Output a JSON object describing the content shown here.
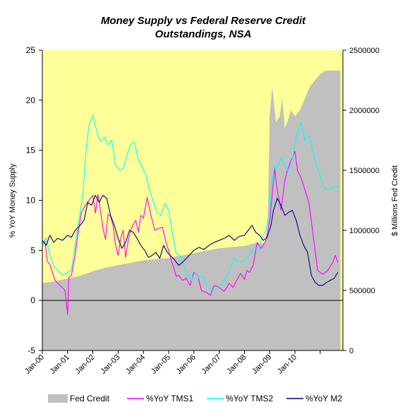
{
  "colors": {
    "plot_bg": "#FFFF99",
    "fed_credit": "#C0C0C0",
    "tms1": "#FF00FF",
    "tms2": "#00FFFF",
    "m2": "#000080",
    "axis": "#000000"
  },
  "chart_data": {
    "type": "line",
    "title_lines": [
      "Money Supply vs Federal Reserve Credit",
      "Outstandings, NSA"
    ],
    "ylabel_left": "% YoY Money Supply",
    "ylabel_right": "$ Millions Fed Credit",
    "ylim_left": [
      -5,
      25
    ],
    "ylim_right": [
      0,
      2500000
    ],
    "yticks_left": [
      "25",
      "20",
      "15",
      "10",
      "5",
      "0",
      "-5"
    ],
    "yticks_right": [
      "2500000",
      "2000000",
      "1500000",
      "1000000",
      "500000",
      "0"
    ],
    "xticks": [
      "Jan-00",
      "Jan-01",
      "Jan-02",
      "Jan-03",
      "Jan-04",
      "Jan-05",
      "Jan-06",
      "Jan-07",
      "Jan-08",
      "Jan-09",
      "Jan-10"
    ],
    "xlim": [
      0,
      11.9
    ],
    "legend_position": "bottom",
    "series": [
      {
        "name": "Fed Credit",
        "kind": "area",
        "axis": "right",
        "x": [
          0,
          0.5,
          1,
          1.5,
          2,
          2.5,
          3,
          3.5,
          4,
          4.5,
          5,
          5.5,
          6,
          6.5,
          7,
          7.5,
          8,
          8.5,
          8.7,
          8.83,
          8.92,
          9.0,
          9.1,
          9.25,
          9.4,
          9.5,
          9.6,
          9.7,
          9.85,
          10.0,
          10.2,
          10.4,
          10.6,
          10.8,
          11.0,
          11.2,
          11.4,
          11.6,
          11.8
        ],
        "values": [
          560000,
          575000,
          600000,
          620000,
          660000,
          690000,
          710000,
          730000,
          750000,
          760000,
          770000,
          790000,
          810000,
          830000,
          850000,
          860000,
          870000,
          900000,
          890000,
          900000,
          1000000,
          1950000,
          2200000,
          1900000,
          1950000,
          2100000,
          1850000,
          1900000,
          2000000,
          1950000,
          2000000,
          2100000,
          2200000,
          2250000,
          2300000,
          2330000,
          2330000,
          2330000,
          2330000
        ]
      },
      {
        "name": "%YoY TMS1",
        "kind": "line",
        "axis": "left",
        "x": [
          0,
          0.1,
          0.2,
          0.3,
          0.5,
          0.7,
          0.9,
          1.0,
          1.05,
          1.15,
          1.3,
          1.4,
          1.55,
          1.7,
          1.85,
          2.0,
          2.1,
          2.2,
          2.3,
          2.4,
          2.5,
          2.6,
          2.7,
          2.8,
          2.9,
          3.0,
          3.1,
          3.2,
          3.3,
          3.4,
          3.5,
          3.6,
          3.7,
          3.8,
          3.9,
          4.0,
          4.15,
          4.3,
          4.45,
          4.6,
          4.75,
          4.9,
          5.0,
          5.1,
          5.2,
          5.3,
          5.4,
          5.55,
          5.7,
          5.85,
          6.0,
          6.15,
          6.3,
          6.5,
          6.65,
          6.8,
          7.0,
          7.2,
          7.4,
          7.55,
          7.7,
          7.85,
          8.0,
          8.1,
          8.2,
          8.35,
          8.5,
          8.65,
          8.75,
          8.85,
          9.0,
          9.1,
          9.2,
          9.3,
          9.45,
          9.6,
          9.7,
          9.85,
          10.0,
          10.1,
          10.25,
          10.4,
          10.55,
          10.7,
          10.9,
          11.1,
          11.3,
          11.5,
          11.6,
          11.7
        ],
        "values": [
          5.5,
          6.0,
          3.9,
          3.6,
          2.0,
          1.5,
          1.0,
          -1.4,
          2.3,
          2.5,
          4.5,
          6.5,
          8.8,
          9.5,
          10.0,
          10.5,
          8.7,
          10.6,
          9.0,
          7.2,
          6.1,
          8.6,
          8.4,
          7.5,
          5.5,
          4.5,
          6.2,
          7.0,
          4.3,
          6.0,
          7.0,
          7.6,
          8.0,
          6.8,
          8.5,
          8.2,
          10.3,
          8.5,
          7.0,
          7.2,
          7.3,
          5.8,
          5.0,
          4.0,
          3.3,
          2.4,
          2.5,
          2.0,
          2.2,
          1.5,
          2.8,
          2.5,
          1.0,
          0.8,
          0.5,
          1.5,
          1.3,
          0.9,
          1.7,
          1.3,
          2.0,
          2.7,
          2.1,
          3.0,
          2.8,
          3.5,
          5.8,
          5.2,
          5.5,
          6.0,
          8.0,
          10.5,
          13.2,
          11.0,
          9.0,
          12.0,
          13.0,
          14.0,
          14.9,
          13.0,
          12.2,
          11.0,
          9.8,
          7.0,
          3.0,
          2.6,
          3.0,
          3.8,
          4.5,
          3.8
        ]
      },
      {
        "name": "%YoY TMS2",
        "kind": "line",
        "axis": "left",
        "x": [
          0,
          0.15,
          0.3,
          0.45,
          0.6,
          0.8,
          1.0,
          1.15,
          1.3,
          1.45,
          1.6,
          1.75,
          1.85,
          2.0,
          2.1,
          2.2,
          2.3,
          2.45,
          2.6,
          2.75,
          2.9,
          3.05,
          3.2,
          3.35,
          3.5,
          3.65,
          3.8,
          3.95,
          4.1,
          4.25,
          4.4,
          4.55,
          4.7,
          4.85,
          5.0,
          5.1,
          5.2,
          5.3,
          5.45,
          5.6,
          5.75,
          5.9,
          6.05,
          6.2,
          6.35,
          6.5,
          6.65,
          6.8,
          7.0,
          7.2,
          7.4,
          7.6,
          7.8,
          8.0,
          8.2,
          8.4,
          8.55,
          8.7,
          8.85,
          9.0,
          9.1,
          9.2,
          9.3,
          9.45,
          9.6,
          9.75,
          9.9,
          10.0,
          10.1,
          10.25,
          10.4,
          10.55,
          10.7,
          10.85,
          11.0,
          11.15,
          11.3,
          11.45,
          11.6,
          11.75
        ],
        "values": [
          5.5,
          6.3,
          4.5,
          3.5,
          3.0,
          2.5,
          2.8,
          3.0,
          5.5,
          8.0,
          10.5,
          15.5,
          17.5,
          18.5,
          17.5,
          16.5,
          15.9,
          16.3,
          15.5,
          16.0,
          13.5,
          13.0,
          13.2,
          14.5,
          15.6,
          15.8,
          14.0,
          13.3,
          12.5,
          11.0,
          9.8,
          8.8,
          8.5,
          9.7,
          9.0,
          7.5,
          6.0,
          4.7,
          4.5,
          3.5,
          2.5,
          2.0,
          2.8,
          2.2,
          2.5,
          1.5,
          1.2,
          1.0,
          1.3,
          2.0,
          3.0,
          4.2,
          3.8,
          4.0,
          4.6,
          5.2,
          5.0,
          6.3,
          7.0,
          9.0,
          12.0,
          13.5,
          13.2,
          14.3,
          13.5,
          12.8,
          14.2,
          15.5,
          17.0,
          17.8,
          16.0,
          16.5,
          15.0,
          13.5,
          12.5,
          11.3,
          11.0,
          11.2,
          11.5,
          11.3
        ]
      },
      {
        "name": "%YoY M2",
        "kind": "line",
        "axis": "left",
        "x": [
          0,
          0.15,
          0.3,
          0.45,
          0.6,
          0.8,
          1.0,
          1.15,
          1.3,
          1.5,
          1.65,
          1.8,
          1.95,
          2.1,
          2.25,
          2.4,
          2.55,
          2.7,
          2.85,
          3.0,
          3.15,
          3.3,
          3.45,
          3.6,
          3.75,
          3.9,
          4.05,
          4.2,
          4.35,
          4.5,
          4.65,
          4.8,
          4.95,
          5.1,
          5.25,
          5.4,
          5.55,
          5.7,
          5.85,
          6.0,
          6.2,
          6.4,
          6.6,
          6.8,
          7.0,
          7.2,
          7.4,
          7.6,
          7.8,
          8.0,
          8.15,
          8.3,
          8.45,
          8.6,
          8.75,
          8.9,
          9.05,
          9.15,
          9.3,
          9.45,
          9.6,
          9.75,
          9.9,
          10.05,
          10.2,
          10.35,
          10.5,
          10.65,
          10.8,
          10.95,
          11.1,
          11.25,
          11.4,
          11.55,
          11.7
        ],
        "values": [
          6.0,
          5.5,
          6.5,
          5.8,
          6.2,
          6.0,
          6.5,
          6.3,
          7.0,
          7.5,
          8.0,
          9.8,
          9.5,
          10.5,
          9.8,
          10.5,
          10.2,
          8.5,
          7.5,
          6.2,
          5.2,
          5.8,
          7.0,
          6.8,
          6.2,
          5.5,
          5.0,
          4.3,
          4.5,
          4.8,
          4.2,
          5.5,
          4.8,
          4.4,
          4.0,
          3.5,
          3.8,
          4.2,
          4.6,
          5.0,
          5.3,
          5.1,
          5.5,
          5.8,
          6.0,
          6.2,
          6.5,
          6.0,
          6.4,
          6.5,
          7.0,
          7.5,
          6.8,
          6.5,
          6.0,
          6.3,
          7.5,
          9.0,
          10.2,
          9.5,
          8.5,
          8.8,
          9.0,
          8.0,
          6.5,
          5.5,
          4.8,
          2.5,
          1.8,
          1.5,
          1.5,
          1.8,
          2.0,
          2.2,
          2.8
        ]
      }
    ]
  }
}
